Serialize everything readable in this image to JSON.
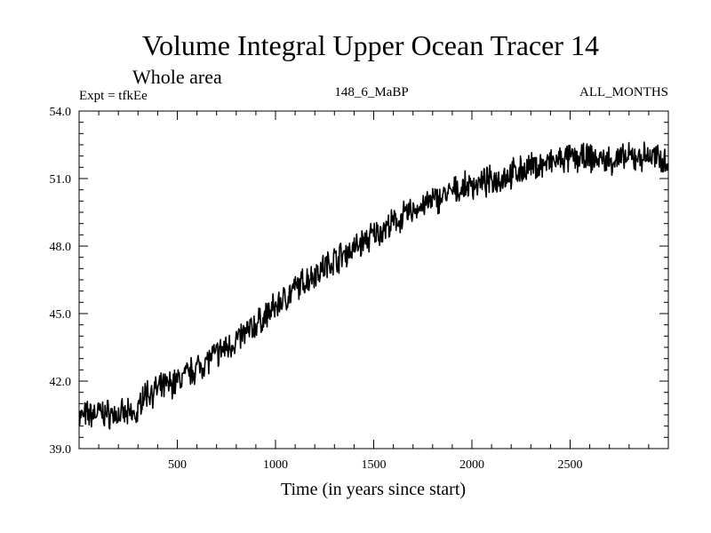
{
  "chart_data": {
    "type": "line",
    "title": "Volume Integral Upper Ocean Tracer 14",
    "subtitle": "Whole area",
    "header_left": "Expt = tfkEe",
    "header_center": "148_6_MaBP",
    "header_right": "ALL_MONTHS",
    "xlabel": "Time (in years since start)",
    "ylabel": "",
    "xlim": [
      0,
      3000
    ],
    "ylim": [
      39.0,
      54.0
    ],
    "x_ticks": [
      "500",
      "1000",
      "1500",
      "2000",
      "2500"
    ],
    "x_tick_values": [
      500,
      1000,
      1500,
      2000,
      2500
    ],
    "y_ticks": [
      "39.0",
      "42.0",
      "45.0",
      "48.0",
      "51.0",
      "54.0"
    ],
    "y_tick_values": [
      39,
      42,
      45,
      48,
      51,
      54
    ],
    "grid": false,
    "line_color": "#000000",
    "series": [
      {
        "x": [
          0,
          100,
          200,
          300,
          320,
          400,
          500,
          600,
          700,
          800,
          900,
          1000,
          1100,
          1200,
          1300,
          1400,
          1500,
          1600,
          1700,
          1800,
          1900,
          2000,
          2100,
          2200,
          2300,
          2400,
          2500,
          2600,
          2700,
          2800,
          2900,
          3000
        ],
        "values": [
          40.4,
          40.6,
          40.5,
          40.5,
          41.4,
          41.6,
          42.0,
          42.6,
          43.2,
          43.8,
          44.5,
          45.3,
          46.1,
          46.8,
          47.4,
          47.9,
          48.5,
          49.0,
          49.6,
          50.0,
          50.4,
          50.7,
          50.9,
          51.2,
          51.5,
          51.7,
          51.9,
          51.9,
          51.8,
          51.9,
          52.0,
          51.8
        ]
      }
    ]
  }
}
